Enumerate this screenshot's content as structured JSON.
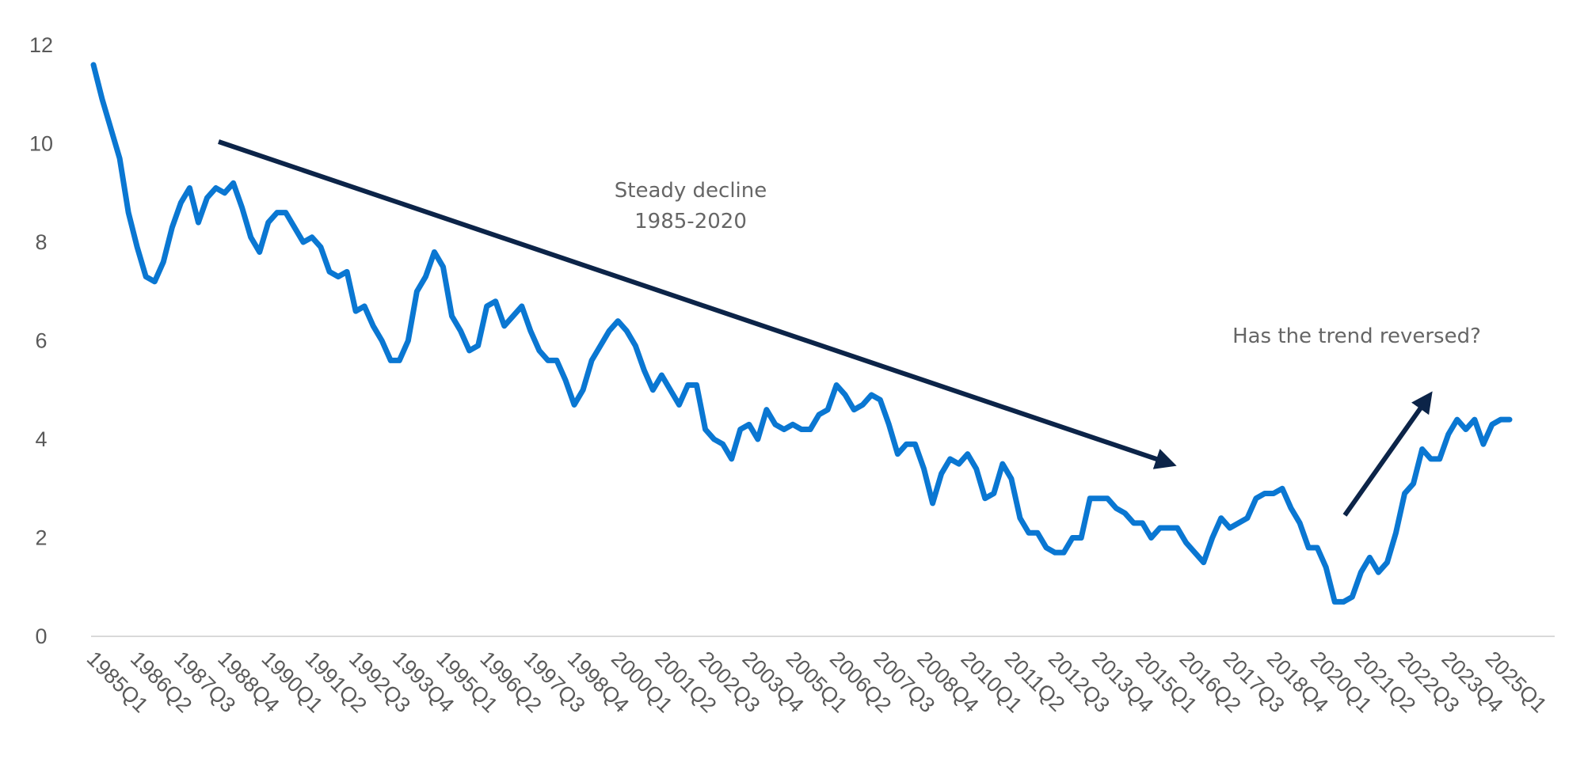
{
  "colors": {
    "line": "#0a77d2",
    "arrow": "#0c2448",
    "axis": "#d9d9d9",
    "text": "#5a5a5a"
  },
  "chart_data": {
    "type": "line",
    "title": "",
    "xlabel": "",
    "ylabel": "",
    "ylim": [
      0,
      12
    ],
    "yticks": [
      0,
      2,
      4,
      6,
      8,
      10,
      12
    ],
    "grid": false,
    "x_tick_labels": [
      "1985Q1",
      "1986Q2",
      "1987Q3",
      "1988Q4",
      "1990Q1",
      "1991Q2",
      "1992Q3",
      "1993Q4",
      "1995Q1",
      "1996Q2",
      "1997Q3",
      "1998Q4",
      "2000Q1",
      "2001Q2",
      "2002Q3",
      "2003Q4",
      "2005Q1",
      "2006Q2",
      "2007Q3",
      "2008Q4",
      "2010Q1",
      "2011Q2",
      "2012Q3",
      "2013Q4",
      "2015Q1",
      "2016Q2",
      "2017Q3",
      "2018Q4",
      "2020Q1",
      "2021Q2",
      "2022Q3",
      "2023Q4",
      "2025Q1"
    ],
    "x_start": "1985Q1",
    "series": [
      {
        "values": [
          11.6,
          10.9,
          10.3,
          9.7,
          8.6,
          7.9,
          7.3,
          7.2,
          7.6,
          8.3,
          8.8,
          9.1,
          8.4,
          8.9,
          9.1,
          9.0,
          9.2,
          8.7,
          8.1,
          7.8,
          8.4,
          8.6,
          8.6,
          8.3,
          8.0,
          8.1,
          7.9,
          7.4,
          7.3,
          7.4,
          6.6,
          6.7,
          6.3,
          6.0,
          5.6,
          5.6,
          6.0,
          7.0,
          7.3,
          7.8,
          7.5,
          6.5,
          6.2,
          5.8,
          5.9,
          6.7,
          6.8,
          6.3,
          6.5,
          6.7,
          6.2,
          5.8,
          5.6,
          5.6,
          5.2,
          4.7,
          5.0,
          5.6,
          5.9,
          6.2,
          6.4,
          6.2,
          5.9,
          5.4,
          5.0,
          5.3,
          5.0,
          4.7,
          5.1,
          5.1,
          4.2,
          4.0,
          3.9,
          3.6,
          4.2,
          4.3,
          4.0,
          4.6,
          4.3,
          4.2,
          4.3,
          4.2,
          4.2,
          4.5,
          4.6,
          5.1,
          4.9,
          4.6,
          4.7,
          4.9,
          4.8,
          4.3,
          3.7,
          3.9,
          3.9,
          3.4,
          2.7,
          3.3,
          3.6,
          3.5,
          3.7,
          3.4,
          2.8,
          2.9,
          3.5,
          3.2,
          2.4,
          2.1,
          2.1,
          1.8,
          1.7,
          1.7,
          2.0,
          2.0,
          2.8,
          2.8,
          2.8,
          2.6,
          2.5,
          2.3,
          2.3,
          2.0,
          2.2,
          2.2,
          2.2,
          1.9,
          1.7,
          1.5,
          2.0,
          2.4,
          2.2,
          2.3,
          2.4,
          2.8,
          2.9,
          2.9,
          3.0,
          2.6,
          2.3,
          1.8,
          1.8,
          1.4,
          0.7,
          0.7,
          0.8,
          1.3,
          1.6,
          1.3,
          1.5,
          2.1,
          2.9,
          3.1,
          3.8,
          3.6,
          3.6,
          4.1,
          4.4,
          4.2,
          4.4,
          3.9,
          4.3,
          4.4,
          4.4
        ]
      }
    ],
    "annotations": [
      {
        "lines": [
          "Steady decline",
          "1985-2020"
        ]
      },
      {
        "lines": [
          "Has the trend reversed?"
        ]
      }
    ]
  }
}
